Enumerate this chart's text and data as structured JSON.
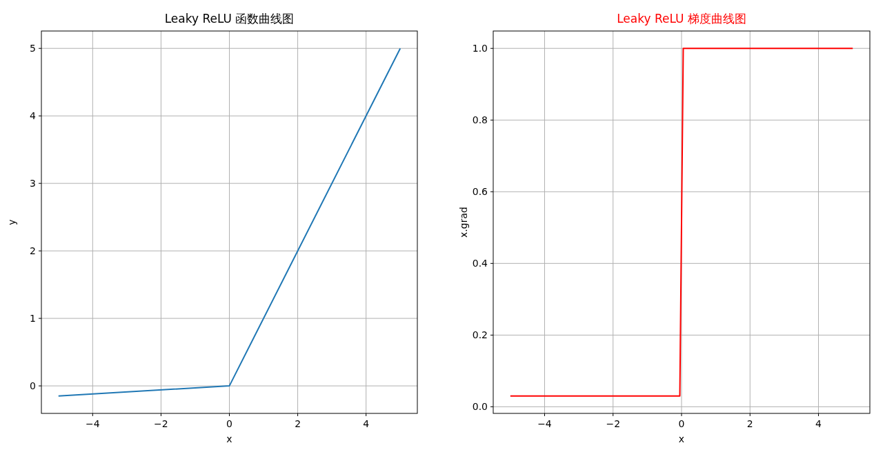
{
  "chart_data": [
    {
      "type": "line",
      "title": "Leaky ReLU 函数曲线图",
      "xlabel": "x",
      "ylabel": "y",
      "x": [
        -5,
        0,
        5
      ],
      "series": [
        {
          "color": "#1f77b4",
          "values": [
            -0.15,
            0,
            5
          ]
        }
      ],
      "xlim": [
        -5.5,
        5.5
      ],
      "ylim": [
        -0.4075,
        5.2575
      ],
      "xticks": [
        -4,
        -2,
        0,
        2,
        4
      ],
      "yticks": [
        0,
        1,
        2,
        3,
        4,
        5
      ],
      "grid": true
    },
    {
      "type": "line",
      "title": "Leaky ReLU 梯度曲线图",
      "xlabel": "x",
      "ylabel": "x.grad",
      "x": [
        -5,
        -0.05,
        0.05,
        5
      ],
      "series": [
        {
          "color": "#ff0000",
          "values": [
            0.03,
            0.03,
            1,
            1
          ]
        }
      ],
      "xlim": [
        -5.5,
        5.5
      ],
      "ylim": [
        -0.0185,
        1.0485
      ],
      "xticks": [
        -4,
        -2,
        0,
        2,
        4
      ],
      "yticks": [
        {
          "value": 0,
          "label": "0.0"
        },
        {
          "value": 0.2,
          "label": "0.2"
        },
        {
          "value": 0.4,
          "label": "0.4"
        },
        {
          "value": 0.6,
          "label": "0.6"
        },
        {
          "value": 0.8,
          "label": "0.8"
        },
        {
          "value": 1,
          "label": "1.0"
        }
      ],
      "grid": true
    }
  ]
}
